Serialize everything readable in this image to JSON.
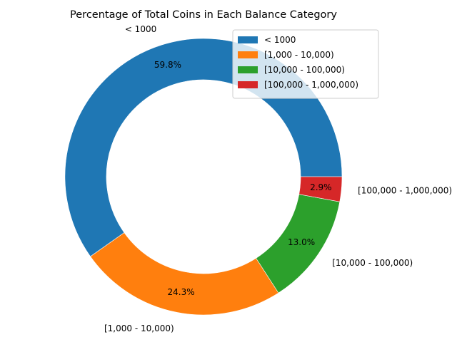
{
  "chart_data": {
    "type": "pie",
    "title": "Percentage of Total Coins in Each Balance Category",
    "donut": true,
    "start_angle_deg": 0,
    "direction": "counterclockwise",
    "legend_position": "top-right",
    "slices": [
      {
        "label": "< 1000",
        "value": 59.8,
        "pct_label": "59.8%",
        "color": "#1f77b4"
      },
      {
        "label": "[1,000 - 10,000)",
        "value": 24.3,
        "pct_label": "24.3%",
        "color": "#ff7f0e"
      },
      {
        "label": "[10,000 - 100,000)",
        "value": 13.0,
        "pct_label": "13.0%",
        "color": "#2ca02c"
      },
      {
        "label": "[100,000 - 1,000,000)",
        "value": 2.9,
        "pct_label": "2.9%",
        "color": "#d62728"
      }
    ]
  }
}
